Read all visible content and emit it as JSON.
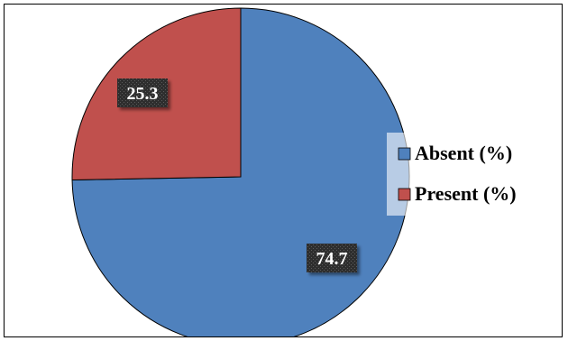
{
  "chart_data": {
    "type": "pie",
    "title": "",
    "slices": [
      {
        "label": "Absent (%)",
        "value": 74.7,
        "data_label": "74.7",
        "color": "#4f81bd"
      },
      {
        "label": "Present (%)",
        "value": 25.3,
        "data_label": "25.3",
        "color": "#c0504d"
      }
    ],
    "legend_position": "right",
    "start_angle": "12 o'clock, clockwise"
  }
}
